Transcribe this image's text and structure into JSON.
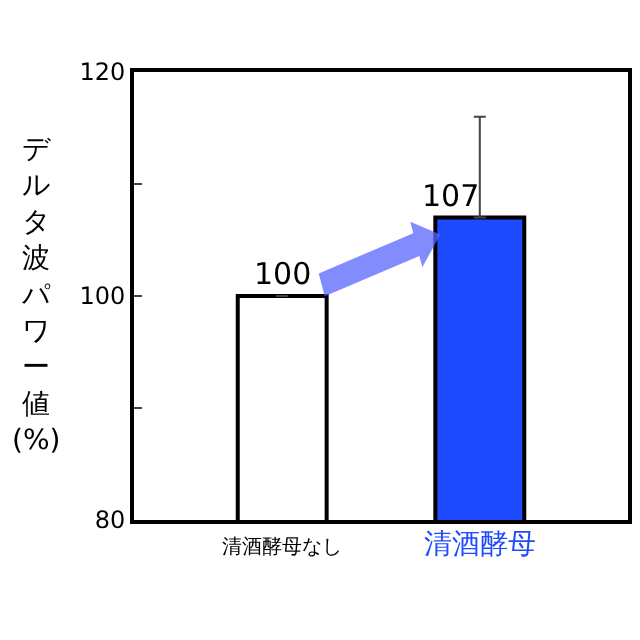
{
  "chart_data": {
    "type": "bar",
    "ylabel": "デルタ波パワー値 (%)",
    "categories": [
      "清酒酵母なし",
      "清酒酵母"
    ],
    "values": [
      100,
      107
    ],
    "colors": [
      "#ffffff",
      "#1f4bff"
    ],
    "errors": [
      null,
      [
        107,
        116
      ]
    ],
    "data_labels": true,
    "ylim": [
      80,
      120
    ],
    "yticks": [
      80,
      {
        "value": 90,
        "label": null
      },
      100,
      {
        "value": 110,
        "label": null
      },
      120
    ]
  }
}
